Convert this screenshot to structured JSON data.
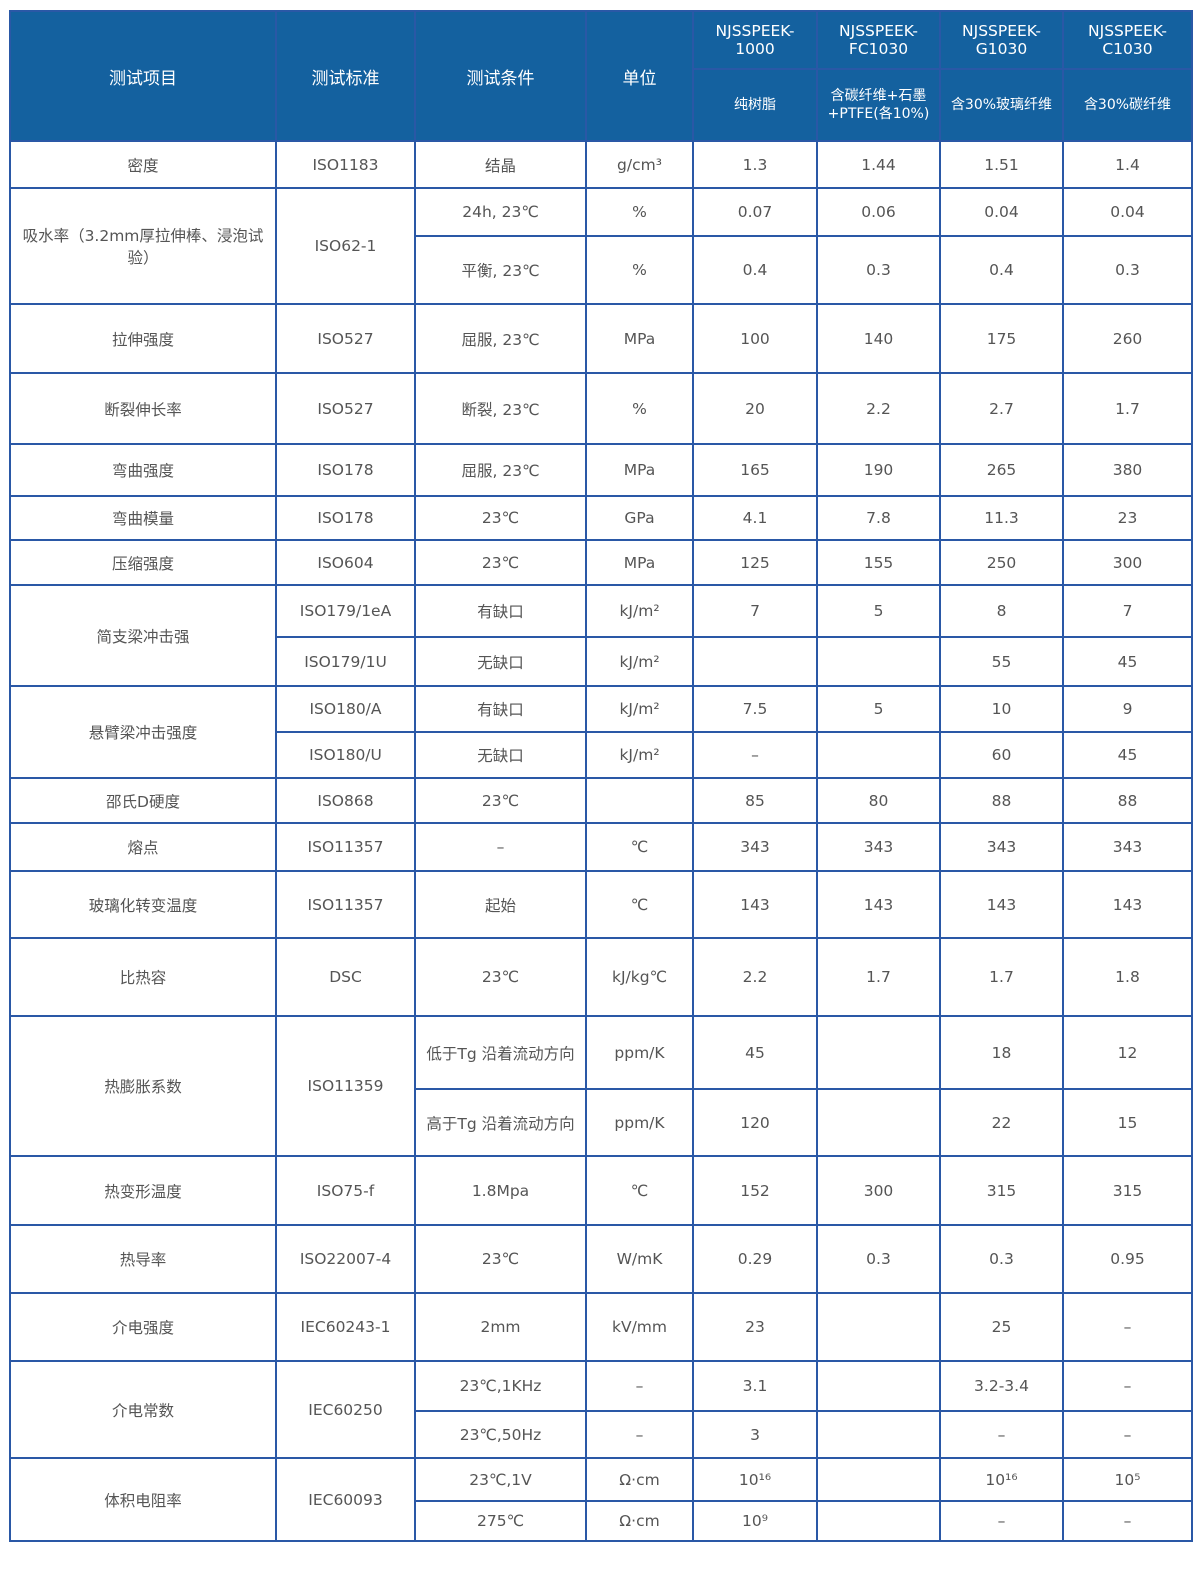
{
  "header": {
    "item": "测试项目",
    "standard": "测试标准",
    "condition": "测试条件",
    "unit": "单位",
    "grades": [
      {
        "name": "NJSSPEEK-1000",
        "desc": "纯树脂"
      },
      {
        "name": "NJSSPEEK-FC1030",
        "desc": "含碳纤维+石墨+PTFE(各10%)"
      },
      {
        "name": "NJSSPEEK-G1030",
        "desc": "含30%玻璃纤维"
      },
      {
        "name": "NJSSPEEK-C1030",
        "desc": "含30%碳纤维"
      }
    ]
  },
  "groups": [
    {
      "item": "密度",
      "standard": "ISO1183",
      "rows": [
        {
          "condition": "结晶",
          "unit": "g/cm³",
          "values": [
            "1.3",
            "1.44",
            "1.51",
            "1.4"
          ]
        }
      ]
    },
    {
      "item": "吸水率（3.2mm厚拉伸棒、浸泡试验）",
      "standard": "ISO62-1",
      "rows": [
        {
          "condition": "24h, 23℃",
          "unit": "%",
          "values": [
            "0.07",
            "0.06",
            "0.04",
            "0.04"
          ]
        },
        {
          "condition": "平衡, 23℃",
          "unit": "%",
          "values": [
            "0.4",
            "0.3",
            "0.4",
            "0.3"
          ]
        }
      ]
    },
    {
      "item": "拉伸强度",
      "standard": "ISO527",
      "rows": [
        {
          "condition": "屈服, 23℃",
          "unit": "MPa",
          "values": [
            "100",
            "140",
            "175",
            "260"
          ]
        }
      ]
    },
    {
      "item": "断裂伸长率",
      "standard": "ISO527",
      "rows": [
        {
          "condition": "断裂, 23℃",
          "unit": "%",
          "values": [
            "20",
            "2.2",
            "2.7",
            "1.7"
          ]
        }
      ]
    },
    {
      "item": "弯曲强度",
      "standard": "ISO178",
      "rows": [
        {
          "condition": "屈服, 23℃",
          "unit": "MPa",
          "values": [
            "165",
            "190",
            "265",
            "380"
          ]
        }
      ]
    },
    {
      "item": "弯曲模量",
      "standard": "ISO178",
      "rows": [
        {
          "condition": "23℃",
          "unit": "GPa",
          "values": [
            "4.1",
            "7.8",
            "11.3",
            "23"
          ]
        }
      ]
    },
    {
      "item": "压缩强度",
      "standard": "ISO604",
      "rows": [
        {
          "condition": "23℃",
          "unit": "MPa",
          "values": [
            "125",
            "155",
            "250",
            "300"
          ]
        }
      ]
    },
    {
      "item": "简支梁冲击强",
      "rows": [
        {
          "standard": "ISO179/1eA",
          "condition": "有缺口",
          "unit": "kJ/m²",
          "values": [
            "7",
            "5",
            "8",
            "7"
          ]
        },
        {
          "standard": "ISO179/1U",
          "condition": "无缺口",
          "unit": "kJ/m²",
          "values": [
            "",
            "",
            "55",
            "45"
          ]
        }
      ]
    },
    {
      "item": "悬臂梁冲击强度",
      "rows": [
        {
          "standard": "ISO180/A",
          "condition": "有缺口",
          "unit": "kJ/m²",
          "values": [
            "7.5",
            "5",
            "10",
            "9"
          ]
        },
        {
          "standard": "ISO180/U",
          "condition": "无缺口",
          "unit": "kJ/m²",
          "values": [
            "–",
            "",
            "60",
            "45"
          ]
        }
      ]
    },
    {
      "item": "邵氏D硬度",
      "standard": "ISO868",
      "rows": [
        {
          "condition": "23℃",
          "unit": "",
          "values": [
            "85",
            "80",
            "88",
            "88"
          ]
        }
      ]
    },
    {
      "item": "熔点",
      "standard": "ISO11357",
      "rows": [
        {
          "condition": "–",
          "unit": "℃",
          "values": [
            "343",
            "343",
            "343",
            "343"
          ]
        }
      ]
    },
    {
      "item": "玻璃化转变温度",
      "standard": "ISO11357",
      "rows": [
        {
          "condition": "起始",
          "unit": "℃",
          "values": [
            "143",
            "143",
            "143",
            "143"
          ]
        }
      ]
    },
    {
      "item": "比热容",
      "standard": "DSC",
      "rows": [
        {
          "condition": "23℃",
          "unit": "kJ/kg℃",
          "values": [
            "2.2",
            "1.7",
            "1.7",
            "1.8"
          ]
        }
      ]
    },
    {
      "item": "热膨胀系数",
      "standard": "ISO11359",
      "rows": [
        {
          "condition": "低于Tg 沿着流动方向",
          "unit": "ppm/K",
          "values": [
            "45",
            "",
            "18",
            "12"
          ]
        },
        {
          "condition": "高于Tg 沿着流动方向",
          "unit": "ppm/K",
          "values": [
            "120",
            "",
            "22",
            "15"
          ]
        }
      ]
    },
    {
      "item": "热变形温度",
      "standard": "ISO75-f",
      "rows": [
        {
          "condition": "1.8Mpa",
          "unit": "℃",
          "values": [
            "152",
            "300",
            "315",
            "315"
          ]
        }
      ]
    },
    {
      "item": "热导率",
      "standard": "ISO22007-4",
      "rows": [
        {
          "condition": "23℃",
          "unit": "W/mK",
          "values": [
            "0.29",
            "0.3",
            "0.3",
            "0.95"
          ]
        }
      ]
    },
    {
      "item": "介电强度",
      "standard": "IEC60243-1",
      "rows": [
        {
          "condition": "2mm",
          "unit": "kV/mm",
          "values": [
            "23",
            "",
            "25",
            "–"
          ]
        }
      ]
    },
    {
      "item": "介电常数",
      "standard": "IEC60250",
      "rows": [
        {
          "condition": "23℃,1KHz",
          "unit": "–",
          "values": [
            "3.1",
            "",
            "3.2-3.4",
            "–"
          ]
        },
        {
          "condition": "23℃,50Hz",
          "unit": "–",
          "values": [
            "3",
            "",
            "–",
            "–"
          ]
        }
      ]
    },
    {
      "item": "体积电阻率",
      "standard": "IEC60093",
      "rows": [
        {
          "condition": "23℃,1V",
          "unit": "Ω·cm",
          "values": [
            "10¹⁶",
            "",
            "10¹⁶",
            "10⁵"
          ]
        },
        {
          "condition": "275℃",
          "unit": "Ω·cm",
          "values": [
            "10⁹",
            "",
            "–",
            "–"
          ]
        }
      ]
    }
  ],
  "colors": {
    "header_bg": "#14619f",
    "border": "#2a58a6",
    "text": "#555555"
  }
}
